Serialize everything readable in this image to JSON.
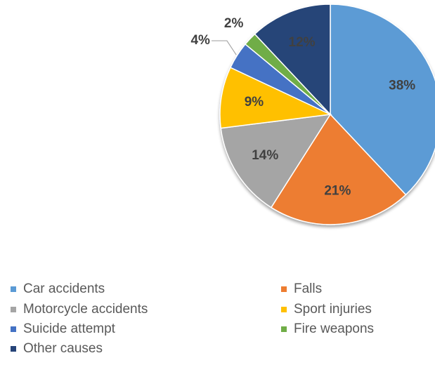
{
  "chart_data": {
    "type": "pie",
    "categories": [
      "Car accidents",
      "Falls",
      "Motorcycle accidents",
      "Sport injuries",
      "Suicide attempt",
      "Fire weapons",
      "Other causes"
    ],
    "values": [
      38,
      21,
      14,
      9,
      4,
      2,
      12
    ],
    "value_labels": [
      "38%",
      "21%",
      "14%",
      "9%",
      "4%",
      "2%",
      "12%"
    ],
    "colors": [
      "#5b9bd5",
      "#ed7d31",
      "#a5a5a5",
      "#ffc000",
      "#4472c4",
      "#70ad47",
      "#264478"
    ],
    "legend": "bottom"
  }
}
